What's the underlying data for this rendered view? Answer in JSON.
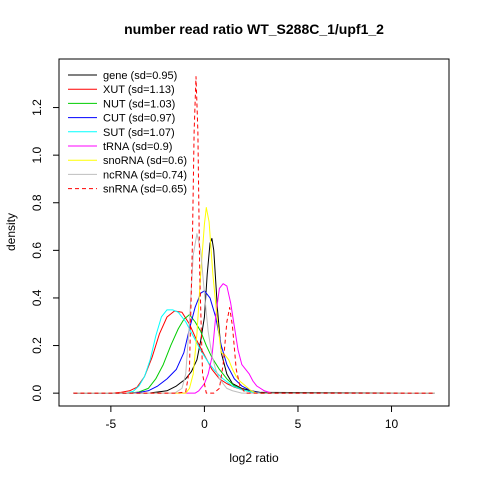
{
  "chart_data": {
    "type": "line",
    "title": "number read ratio WT_S288C_1/upf1_2",
    "xlabel": "log2 ratio",
    "ylabel": "density",
    "xlim": [
      -7,
      12.3
    ],
    "ylim": [
      0,
      1.35
    ],
    "xticks": [
      -5,
      0,
      5,
      10
    ],
    "yticks": [
      0.0,
      0.2,
      0.4,
      0.6,
      0.8,
      1.0,
      1.2
    ],
    "legend_position": "top-left",
    "series": [
      {
        "name": "gene (sd=0.95)",
        "color": "#000000",
        "dash": false,
        "points": [
          [
            -7,
            0
          ],
          [
            -3,
            0
          ],
          [
            -2.5,
            0.005
          ],
          [
            -2,
            0.01
          ],
          [
            -1.5,
            0.03
          ],
          [
            -1,
            0.06
          ],
          [
            -0.7,
            0.09
          ],
          [
            -0.4,
            0.14
          ],
          [
            -0.2,
            0.22
          ],
          [
            0,
            0.32
          ],
          [
            0.15,
            0.5
          ],
          [
            0.3,
            0.63
          ],
          [
            0.4,
            0.65
          ],
          [
            0.5,
            0.6
          ],
          [
            0.7,
            0.35
          ],
          [
            0.9,
            0.17
          ],
          [
            1.2,
            0.08
          ],
          [
            1.5,
            0.04
          ],
          [
            2,
            0.02
          ],
          [
            2.5,
            0.01
          ],
          [
            3,
            0.003
          ],
          [
            12.3,
            0
          ]
        ]
      },
      {
        "name": "XUT (sd=1.13)",
        "color": "#ff0000",
        "dash": false,
        "points": [
          [
            -7,
            0
          ],
          [
            -5,
            0
          ],
          [
            -4.5,
            0.003
          ],
          [
            -4,
            0.01
          ],
          [
            -3.6,
            0.025
          ],
          [
            -3.2,
            0.07
          ],
          [
            -2.8,
            0.15
          ],
          [
            -2.4,
            0.25
          ],
          [
            -2,
            0.32
          ],
          [
            -1.6,
            0.345
          ],
          [
            -1.2,
            0.34
          ],
          [
            -0.8,
            0.29
          ],
          [
            -0.4,
            0.22
          ],
          [
            0,
            0.16
          ],
          [
            0.4,
            0.1
          ],
          [
            0.8,
            0.06
          ],
          [
            1.2,
            0.04
          ],
          [
            1.6,
            0.025
          ],
          [
            2,
            0.015
          ],
          [
            2.5,
            0.005
          ],
          [
            3,
            0
          ],
          [
            12.3,
            0
          ]
        ]
      },
      {
        "name": "NUT (sd=1.03)",
        "color": "#00cd00",
        "dash": false,
        "points": [
          [
            -7,
            0
          ],
          [
            -4,
            0
          ],
          [
            -3.5,
            0.005
          ],
          [
            -3,
            0.02
          ],
          [
            -2.6,
            0.06
          ],
          [
            -2.2,
            0.12
          ],
          [
            -1.8,
            0.2
          ],
          [
            -1.4,
            0.27
          ],
          [
            -1.1,
            0.31
          ],
          [
            -0.8,
            0.33
          ],
          [
            -0.5,
            0.3
          ],
          [
            -0.2,
            0.26
          ],
          [
            0.1,
            0.2
          ],
          [
            0.4,
            0.15
          ],
          [
            0.8,
            0.1
          ],
          [
            1.2,
            0.06
          ],
          [
            1.6,
            0.03
          ],
          [
            2,
            0.015
          ],
          [
            2.5,
            0.005
          ],
          [
            3,
            0
          ],
          [
            12.3,
            0
          ]
        ]
      },
      {
        "name": "CUT (sd=0.97)",
        "color": "#0000ff",
        "dash": false,
        "points": [
          [
            -7,
            0
          ],
          [
            -4,
            0
          ],
          [
            -3.5,
            0.003
          ],
          [
            -3,
            0.01
          ],
          [
            -2.5,
            0.03
          ],
          [
            -2,
            0.06
          ],
          [
            -1.5,
            0.1
          ],
          [
            -1.1,
            0.17
          ],
          [
            -0.8,
            0.27
          ],
          [
            -0.5,
            0.36
          ],
          [
            -0.2,
            0.42
          ],
          [
            0,
            0.43
          ],
          [
            0.3,
            0.4
          ],
          [
            0.6,
            0.32
          ],
          [
            0.9,
            0.2
          ],
          [
            1.2,
            0.12
          ],
          [
            1.6,
            0.06
          ],
          [
            2,
            0.03
          ],
          [
            2.5,
            0.01
          ],
          [
            3,
            0
          ],
          [
            12.3,
            0
          ]
        ]
      },
      {
        "name": "SUT (sd=1.07)",
        "color": "#00ffff",
        "dash": false,
        "points": [
          [
            -7,
            0
          ],
          [
            -4.2,
            0
          ],
          [
            -3.8,
            0.008
          ],
          [
            -3.5,
            0.03
          ],
          [
            -3.2,
            0.07
          ],
          [
            -2.9,
            0.14
          ],
          [
            -2.6,
            0.24
          ],
          [
            -2.3,
            0.32
          ],
          [
            -2,
            0.35
          ],
          [
            -1.7,
            0.35
          ],
          [
            -1.4,
            0.34
          ],
          [
            -1,
            0.3
          ],
          [
            -0.6,
            0.24
          ],
          [
            -0.2,
            0.18
          ],
          [
            0.2,
            0.13
          ],
          [
            0.6,
            0.09
          ],
          [
            1,
            0.06
          ],
          [
            1.5,
            0.03
          ],
          [
            2,
            0.015
          ],
          [
            2.5,
            0.005
          ],
          [
            3,
            0
          ],
          [
            12.3,
            0
          ]
        ]
      },
      {
        "name": "tRNA (sd=0.9)",
        "color": "#ff00ff",
        "dash": false,
        "points": [
          [
            -7,
            0
          ],
          [
            -0.5,
            0
          ],
          [
            -0.3,
            0.01
          ],
          [
            0,
            0.04
          ],
          [
            0.2,
            0.08
          ],
          [
            0.4,
            0.15
          ],
          [
            0.6,
            0.32
          ],
          [
            0.8,
            0.44
          ],
          [
            1,
            0.46
          ],
          [
            1.2,
            0.45
          ],
          [
            1.4,
            0.38
          ],
          [
            1.6,
            0.28
          ],
          [
            1.8,
            0.18
          ],
          [
            2,
            0.12
          ],
          [
            2.2,
            0.1
          ],
          [
            2.4,
            0.08
          ],
          [
            2.6,
            0.05
          ],
          [
            2.8,
            0.03
          ],
          [
            3.2,
            0.01
          ],
          [
            3.6,
            0
          ],
          [
            12.3,
            0
          ]
        ]
      },
      {
        "name": "snoRNA (sd=0.6)",
        "color": "#ffff00",
        "dash": false,
        "points": [
          [
            -7,
            0
          ],
          [
            -1,
            0
          ],
          [
            -0.8,
            0.02
          ],
          [
            -0.6,
            0.08
          ],
          [
            -0.4,
            0.25
          ],
          [
            -0.2,
            0.5
          ],
          [
            0,
            0.71
          ],
          [
            0.1,
            0.78
          ],
          [
            0.25,
            0.72
          ],
          [
            0.45,
            0.5
          ],
          [
            0.7,
            0.3
          ],
          [
            0.9,
            0.17
          ],
          [
            1.1,
            0.16
          ],
          [
            1.3,
            0.14
          ],
          [
            1.5,
            0.1
          ],
          [
            1.7,
            0.07
          ],
          [
            1.9,
            0.05
          ],
          [
            2.2,
            0.03
          ],
          [
            2.5,
            0.01
          ],
          [
            2.8,
            0
          ],
          [
            12.3,
            0
          ]
        ]
      },
      {
        "name": "ncRNA (sd=0.74)",
        "color": "#bebebe",
        "dash": false,
        "points": [
          [
            -7,
            0
          ],
          [
            -1.6,
            0
          ],
          [
            -1.2,
            0.02
          ],
          [
            -1,
            0.08
          ],
          [
            -0.8,
            0.3
          ],
          [
            -0.6,
            0.58
          ],
          [
            -0.4,
            0.67
          ],
          [
            -0.2,
            0.6
          ],
          [
            0,
            0.42
          ],
          [
            0.2,
            0.26
          ],
          [
            0.4,
            0.16
          ],
          [
            0.6,
            0.1
          ],
          [
            0.8,
            0.06
          ],
          [
            1,
            0.04
          ],
          [
            1.2,
            0.02
          ],
          [
            1.5,
            0.01
          ],
          [
            2,
            0
          ],
          [
            12.3,
            0
          ]
        ]
      },
      {
        "name": "snRNA (sd=0.65)",
        "color": "#ff0000",
        "dash": true,
        "points": [
          [
            -7,
            0
          ],
          [
            -1.5,
            0
          ],
          [
            -1,
            0.005
          ],
          [
            -0.8,
            0.1
          ],
          [
            -0.65,
            0.6
          ],
          [
            -0.55,
            1.1
          ],
          [
            -0.45,
            1.33
          ],
          [
            -0.35,
            1.1
          ],
          [
            -0.25,
            0.5
          ],
          [
            -0.1,
            0.08
          ],
          [
            0.1,
            0
          ],
          [
            0.5,
            0
          ],
          [
            0.8,
            0.02
          ],
          [
            1,
            0.12
          ],
          [
            1.2,
            0.3
          ],
          [
            1.35,
            0.36
          ],
          [
            1.5,
            0.28
          ],
          [
            1.7,
            0.1
          ],
          [
            1.9,
            0.03
          ],
          [
            2.2,
            0
          ],
          [
            12.3,
            0
          ]
        ]
      }
    ]
  }
}
